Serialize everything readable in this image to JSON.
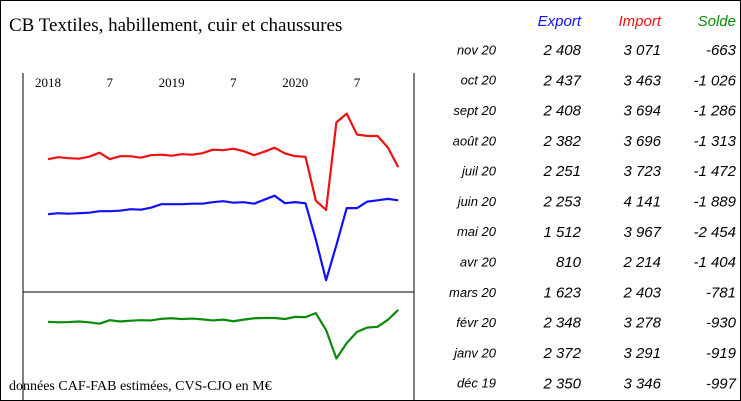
{
  "title": "CB Textiles, habillement, cuir et chaussures",
  "note": "données CAF-FAB estimées, CVS-CJO en M€",
  "chart_data": {
    "type": "line",
    "categories": [
      "2018",
      null,
      null,
      null,
      null,
      null,
      "7",
      null,
      null,
      null,
      null,
      null,
      "2019",
      null,
      null,
      null,
      null,
      null,
      "7",
      null,
      null,
      null,
      null,
      null,
      "2020",
      null,
      null,
      null,
      null,
      null,
      "7",
      null,
      null,
      null,
      null
    ],
    "ylim": [
      574,
      4894
    ],
    "y2lim": [
      -3840,
      0
    ],
    "series": [
      {
        "name": "Export",
        "color": "#1010ff",
        "values": [
          2130,
          2150,
          2140,
          2150,
          2160,
          2190,
          2190,
          2200,
          2230,
          2220,
          2260,
          2330,
          2330,
          2330,
          2340,
          2340,
          2370,
          2390,
          2360,
          2370,
          2340,
          2420,
          2500,
          2350,
          2372,
          2348,
          1623,
          810,
          1512,
          2253,
          2251,
          2382,
          2408,
          2437,
          2408
        ]
      },
      {
        "name": "Import",
        "color": "#ee1111",
        "values": [
          3230,
          3270,
          3250,
          3240,
          3280,
          3360,
          3230,
          3290,
          3290,
          3260,
          3310,
          3320,
          3300,
          3330,
          3320,
          3350,
          3420,
          3410,
          3440,
          3390,
          3310,
          3380,
          3460,
          3346,
          3291,
          3278,
          2403,
          2214,
          3967,
          4141,
          3723,
          3696,
          3694,
          3463,
          3071
        ]
      },
      {
        "name": "Solde",
        "color": "#0a8a0a",
        "axis": "y2",
        "values": [
          -1100,
          -1120,
          -1110,
          -1090,
          -1120,
          -1170,
          -1040,
          -1090,
          -1060,
          -1040,
          -1050,
          -990,
          -970,
          -1000,
          -980,
          -1010,
          -1050,
          -1020,
          -1080,
          -1020,
          -970,
          -960,
          -960,
          -997,
          -919,
          -930,
          -781,
          -1404,
          -2454,
          -1889,
          -1472,
          -1313,
          -1286,
          -1026,
          -663
        ]
      }
    ]
  },
  "table": {
    "rows": [
      [
        "nov 20",
        "2 408",
        "3 071",
        "-663"
      ],
      [
        "oct 20",
        "2 437",
        "3 463",
        "-1 026"
      ],
      [
        "sept 20",
        "2 408",
        "3 694",
        "-1 286"
      ],
      [
        "août 20",
        "2 382",
        "3 696",
        "-1 313"
      ],
      [
        "juil 20",
        "2 251",
        "3 723",
        "-1 472"
      ],
      [
        "juin 20",
        "2 253",
        "4 141",
        "-1 889"
      ],
      [
        "mai 20",
        "1 512",
        "3 967",
        "-2 454"
      ],
      [
        "avr 20",
        "810",
        "2 214",
        "-1 404"
      ],
      [
        "mars 20",
        "1 623",
        "2 403",
        "-781"
      ],
      [
        "févr 20",
        "2 348",
        "3 278",
        "-930"
      ],
      [
        "janv 20",
        "2 372",
        "3 291",
        "-919"
      ],
      [
        "déc 19",
        "2 350",
        "3 346",
        "-997"
      ]
    ]
  }
}
